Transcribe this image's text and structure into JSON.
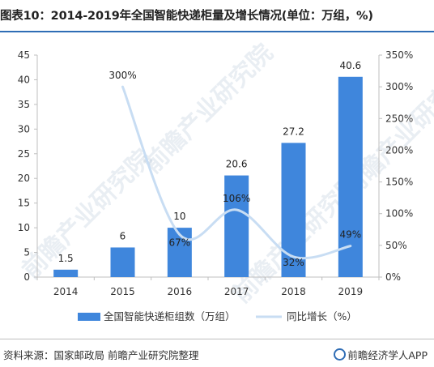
{
  "title": "图表10：2014-2019年全国智能快递柜量及增长情况(单位：万组，%)",
  "source": "资料来源：国家邮政局 前瞻产业研究院整理",
  "brand": "前瞻经济学人APP",
  "watermark": "前瞻产业研究院",
  "colors": {
    "bar": "#3f86dc",
    "line": "#c8ddf3",
    "axis": "#bfbfbf",
    "topline": "#2f6db5"
  },
  "chart_data": {
    "type": "bar",
    "categories": [
      "2014",
      "2015",
      "2016",
      "2017",
      "2018",
      "2019"
    ],
    "series": [
      {
        "name": "全国智能快递柜组数（万组）",
        "type": "bar",
        "axis": "left",
        "values": [
          1.5,
          6,
          10,
          20.6,
          27.2,
          40.6
        ],
        "labels": [
          "1.5",
          "6",
          "10",
          "20.6",
          "27.2",
          "40.6"
        ]
      },
      {
        "name": "同比增长（%）",
        "type": "line",
        "axis": "right",
        "values": [
          null,
          300,
          67,
          106,
          32,
          49
        ],
        "labels": [
          "",
          "300%",
          "67%",
          "106%",
          "32%",
          "49%"
        ]
      }
    ],
    "ylim_left": [
      0,
      45
    ],
    "yticks_left": [
      "0",
      "5",
      "10",
      "15",
      "20",
      "25",
      "30",
      "35",
      "40",
      "45"
    ],
    "ylim_right": [
      0,
      350
    ],
    "yticks_right": [
      "0%",
      "50%",
      "100%",
      "150%",
      "200%",
      "250%",
      "300%",
      "350%"
    ],
    "grid": false,
    "legend": "bottom"
  }
}
